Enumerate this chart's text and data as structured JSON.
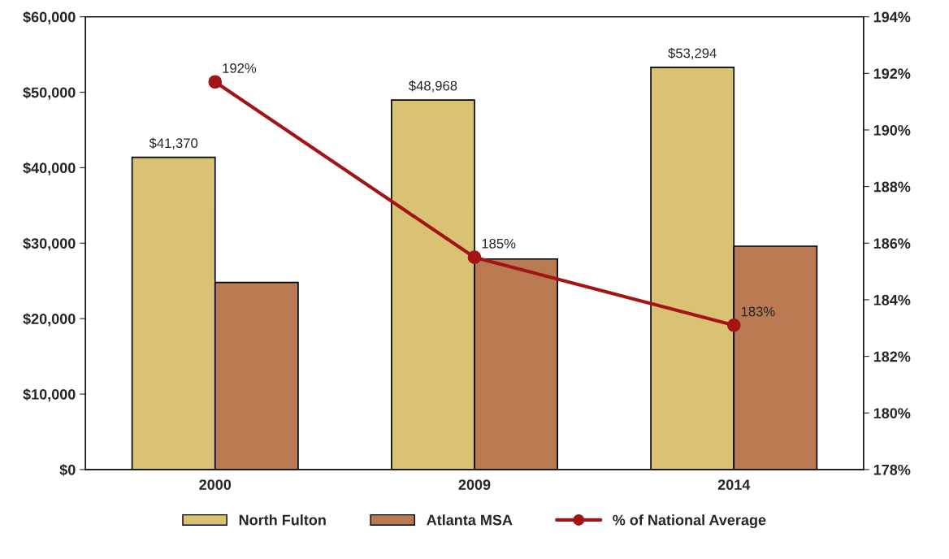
{
  "chart_data": {
    "type": "bar",
    "categories": [
      "2000",
      "2009",
      "2014"
    ],
    "series": [
      {
        "name": "North Fulton",
        "color": "#d9c274",
        "values": [
          41370,
          48968,
          53294
        ],
        "value_labels": [
          "$41,370",
          "$48,968",
          "$53,294"
        ]
      },
      {
        "name": "Atlanta MSA",
        "color": "#b97a52",
        "values": [
          24800,
          27900,
          29600
        ]
      },
      {
        "name": "% of National Average",
        "type": "line",
        "axis": "y2",
        "color": "#a31515",
        "marker": "circle",
        "values": [
          191.7,
          185.5,
          183.1
        ],
        "value_labels": [
          "192%",
          "185%",
          "183%"
        ]
      }
    ],
    "ylim": [
      0,
      60000
    ],
    "yticks": [
      {
        "value": 0,
        "label": "$0"
      },
      {
        "value": 10000,
        "label": "$10,000"
      },
      {
        "value": 20000,
        "label": "$20,000"
      },
      {
        "value": 30000,
        "label": "$30,000"
      },
      {
        "value": 40000,
        "label": "$40,000"
      },
      {
        "value": 50000,
        "label": "$50,000"
      },
      {
        "value": 60000,
        "label": "$60,000"
      }
    ],
    "y2lim": [
      178,
      194
    ],
    "y2ticks": [
      {
        "value": 178,
        "label": "178%"
      },
      {
        "value": 180,
        "label": "180%"
      },
      {
        "value": 182,
        "label": "182%"
      },
      {
        "value": 184,
        "label": "184%"
      },
      {
        "value": 186,
        "label": "186%"
      },
      {
        "value": 188,
        "label": "188%"
      },
      {
        "value": 190,
        "label": "190%"
      },
      {
        "value": 192,
        "label": "192%"
      },
      {
        "value": 194,
        "label": "194%"
      }
    ],
    "grid": false,
    "legend": "bottom"
  }
}
